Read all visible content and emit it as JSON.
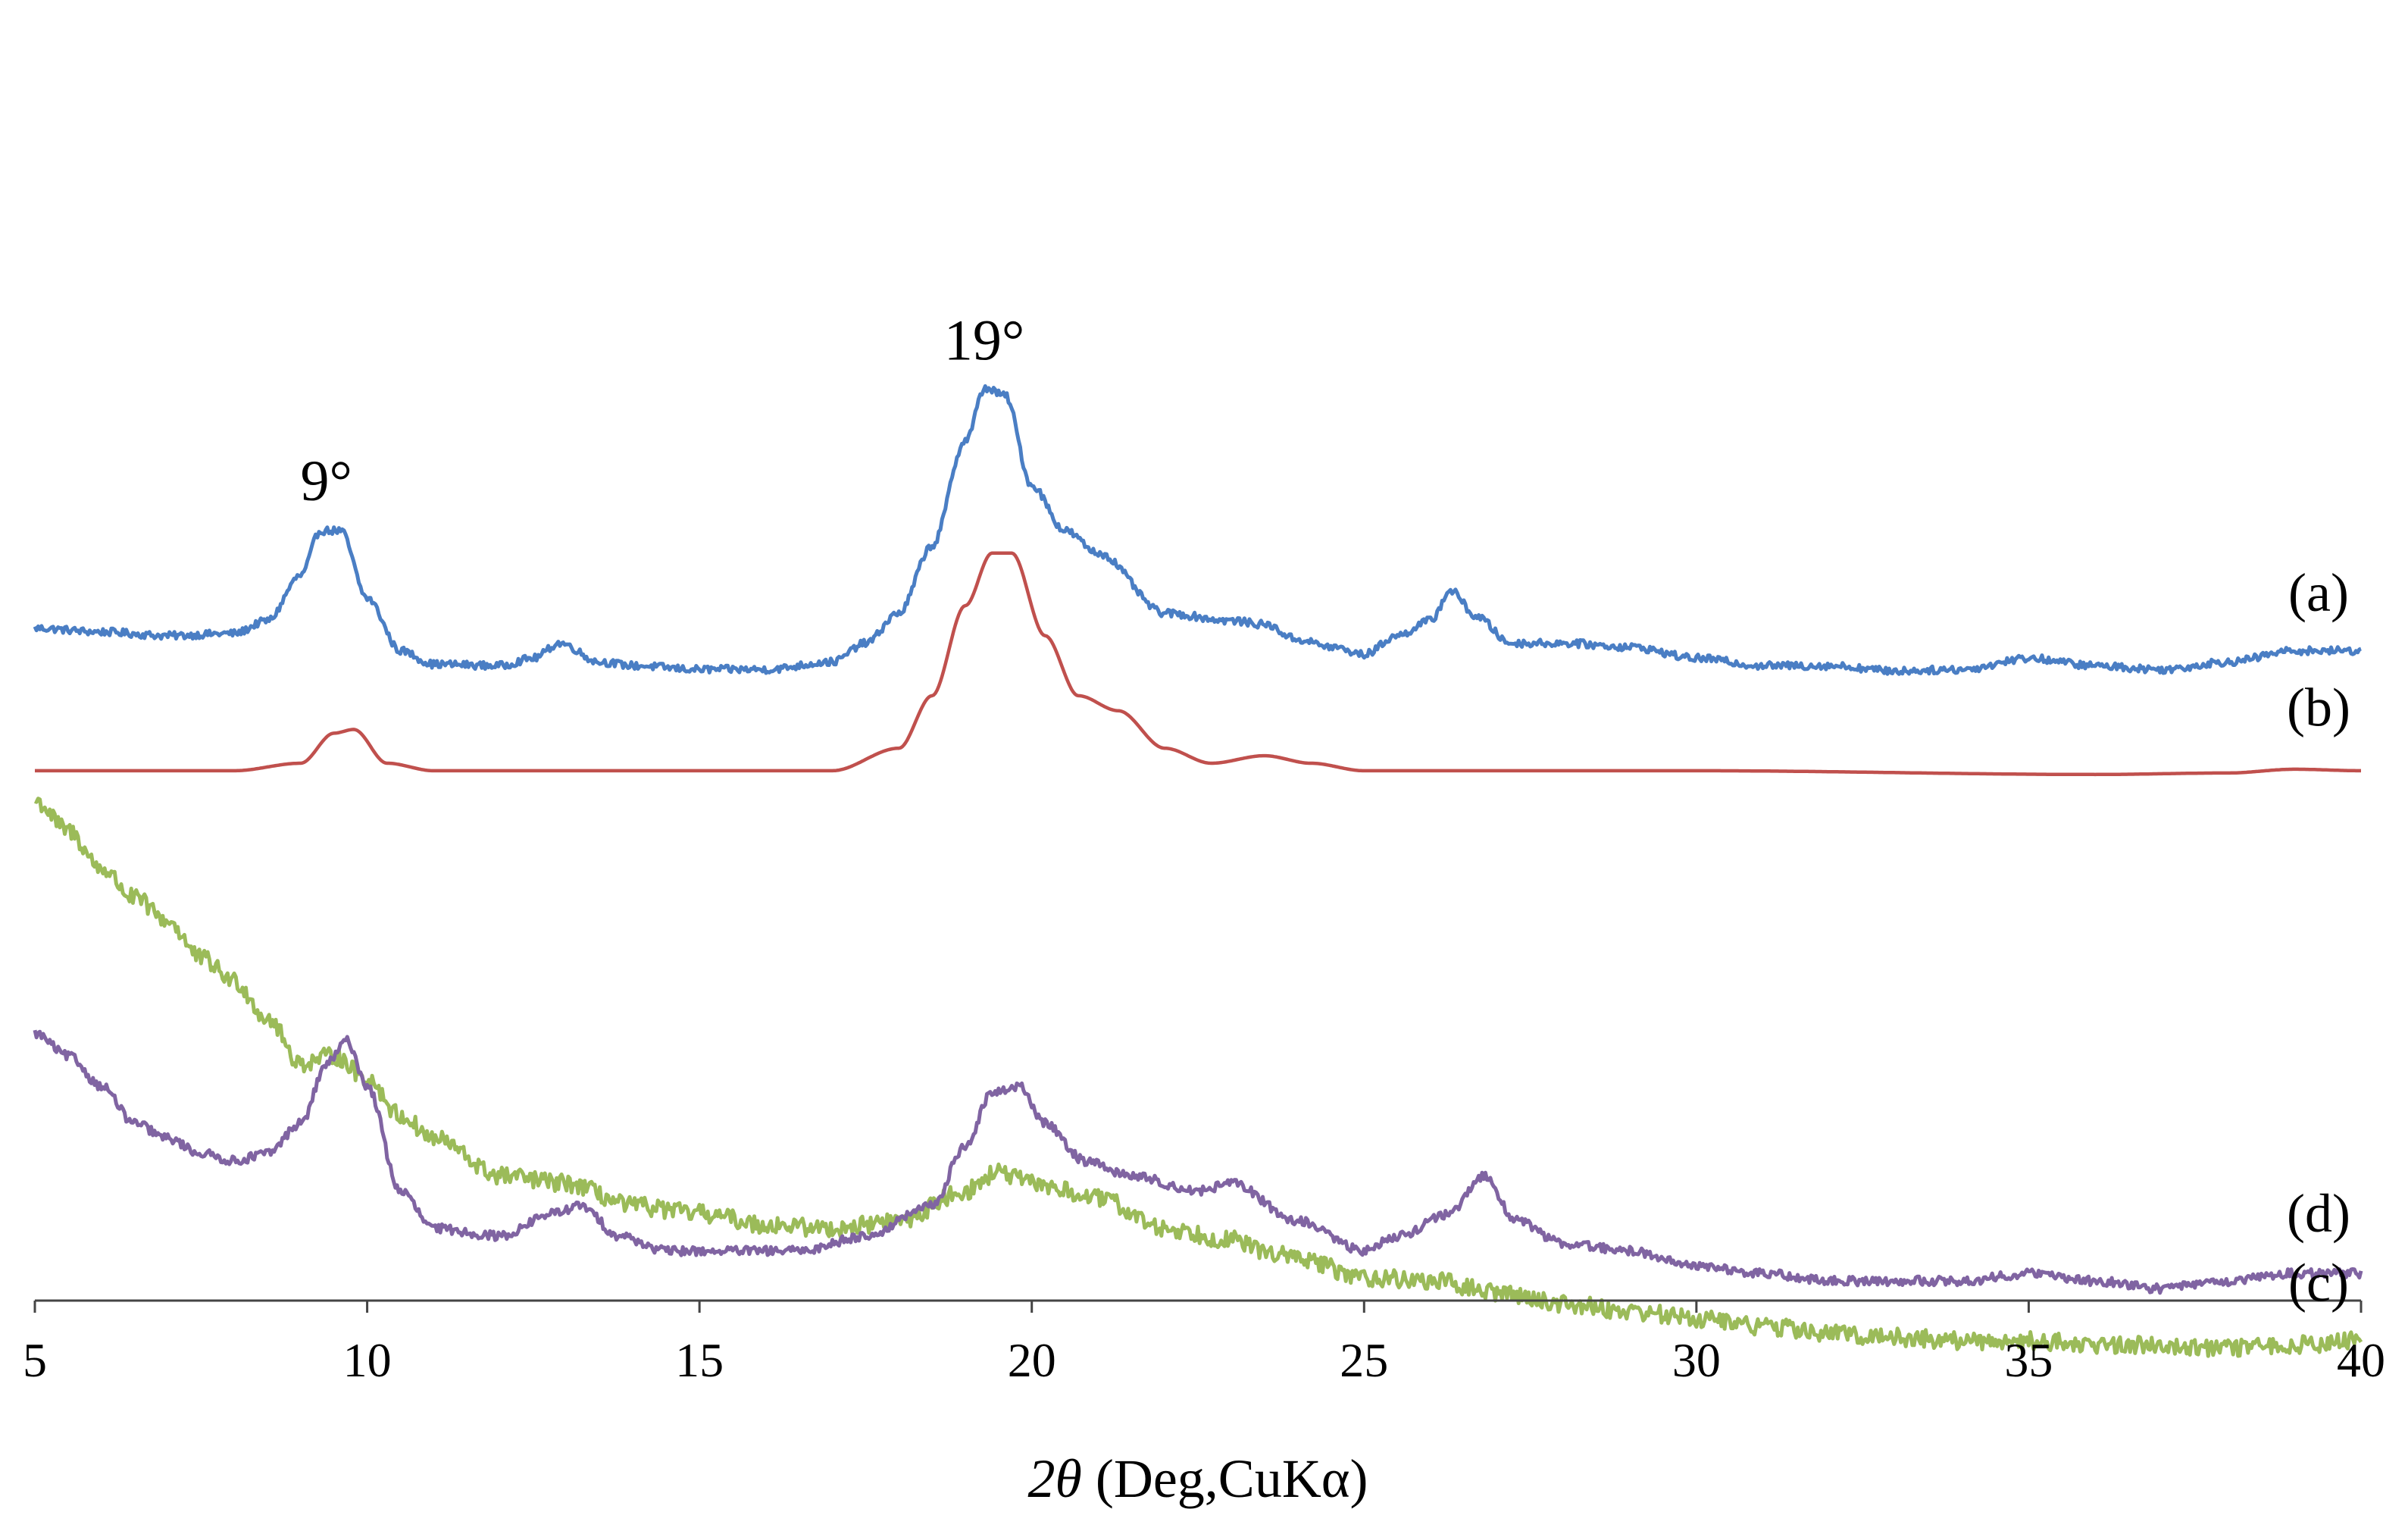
{
  "chart_data": {
    "type": "line",
    "title": "",
    "xlabel_var": "2θ",
    "xlabel_rest": " (Deg,CuKα)",
    "ylabel": "",
    "xlim": [
      5,
      40
    ],
    "xticks": [
      5,
      10,
      15,
      20,
      25,
      30,
      35,
      40
    ],
    "xtick_labels": [
      "5",
      "10",
      "15",
      "20",
      "25",
      "30",
      "35",
      "40"
    ],
    "grid": false,
    "legend": "none",
    "annotations": [
      {
        "text": "9°",
        "x": 9.5
      },
      {
        "text": "19°",
        "x": 19.4
      }
    ],
    "series": [
      {
        "name": "(a)",
        "color": "#4a7ec4",
        "offset": 83,
        "scale": 1.0,
        "noise": 0.5,
        "points": [
          [
            5,
            5
          ],
          [
            6,
            4.5
          ],
          [
            7,
            4
          ],
          [
            8,
            4.3
          ],
          [
            8.5,
            6
          ],
          [
            9,
            12
          ],
          [
            9.3,
            18
          ],
          [
            9.6,
            18
          ],
          [
            10,
            9
          ],
          [
            10.5,
            2
          ],
          [
            11,
            0.2
          ],
          [
            12,
            0
          ],
          [
            12.5,
            1
          ],
          [
            12.9,
            3
          ],
          [
            13.5,
            0.5
          ],
          [
            14,
            0
          ],
          [
            15,
            -0.5
          ],
          [
            16,
            -0.5
          ],
          [
            17,
            0.5
          ],
          [
            17.5,
            3
          ],
          [
            18,
            7
          ],
          [
            18.5,
            16
          ],
          [
            19,
            30
          ],
          [
            19.3,
            37
          ],
          [
            19.6,
            36
          ],
          [
            20,
            24
          ],
          [
            20.5,
            18
          ],
          [
            21,
            15
          ],
          [
            22,
            7
          ],
          [
            23,
            6
          ],
          [
            23.5,
            5.5
          ],
          [
            24,
            3.5
          ],
          [
            24.5,
            2.5
          ],
          [
            25,
            1.5
          ],
          [
            25.5,
            4
          ],
          [
            26,
            6
          ],
          [
            26.3,
            10
          ],
          [
            26.7,
            6.5
          ],
          [
            27.2,
            3
          ],
          [
            28,
            3
          ],
          [
            29,
            2.5
          ],
          [
            30,
            1
          ],
          [
            31,
            0
          ],
          [
            32,
            0
          ],
          [
            33,
            -0.7
          ],
          [
            34,
            -0.5
          ],
          [
            35,
            1
          ],
          [
            36,
            0
          ],
          [
            37,
            -0.5
          ],
          [
            38,
            0.5
          ],
          [
            39,
            2
          ],
          [
            40,
            2
          ]
        ]
      },
      {
        "name": "(b)",
        "color": "#c0504d",
        "offset": 69,
        "scale": 1.0,
        "noise": 0,
        "points": [
          [
            5,
            0
          ],
          [
            8,
            0
          ],
          [
            9,
            1
          ],
          [
            9.5,
            5
          ],
          [
            9.8,
            5.5
          ],
          [
            10.3,
            1
          ],
          [
            11,
            0
          ],
          [
            17,
            0
          ],
          [
            18,
            3
          ],
          [
            18.5,
            10
          ],
          [
            19,
            22
          ],
          [
            19.4,
            29
          ],
          [
            19.7,
            29
          ],
          [
            20.2,
            18
          ],
          [
            20.7,
            10
          ],
          [
            21.3,
            8
          ],
          [
            22,
            3
          ],
          [
            22.7,
            1
          ],
          [
            23.5,
            2
          ],
          [
            24.2,
            1
          ],
          [
            25,
            0
          ],
          [
            30,
            0
          ],
          [
            36,
            -0.5
          ],
          [
            38,
            -0.3
          ],
          [
            39,
            0.2
          ],
          [
            40,
            0
          ]
        ]
      },
      {
        "name": "(c)",
        "color": "#9bbb59",
        "offset": 0,
        "scale": 1.0,
        "noise": 1.2,
        "points": [
          [
            5,
            65
          ],
          [
            5.5,
            61
          ],
          [
            6,
            56
          ],
          [
            6.5,
            52
          ],
          [
            7,
            49
          ],
          [
            7.5,
            44
          ],
          [
            8,
            41
          ],
          [
            8.5,
            36
          ],
          [
            9,
            30
          ],
          [
            9.5,
            31
          ],
          [
            10,
            28
          ],
          [
            10.5,
            23
          ],
          [
            11,
            20
          ],
          [
            12,
            15
          ],
          [
            13,
            14
          ],
          [
            14,
            11
          ],
          [
            15,
            10
          ],
          [
            16,
            8.5
          ],
          [
            17,
            8
          ],
          [
            18,
            9
          ],
          [
            19,
            13
          ],
          [
            19.5,
            15.5
          ],
          [
            20,
            14
          ],
          [
            21,
            12
          ],
          [
            22,
            8
          ],
          [
            23,
            6.5
          ],
          [
            23.5,
            5
          ],
          [
            24,
            4
          ],
          [
            25,
            1.5
          ],
          [
            26,
            1
          ],
          [
            27,
            -0.5
          ],
          [
            28,
            -2
          ],
          [
            29,
            -3
          ],
          [
            30,
            -4
          ],
          [
            31,
            -5
          ],
          [
            32,
            -6
          ],
          [
            33,
            -6.5
          ],
          [
            34,
            -7
          ],
          [
            35,
            -7
          ],
          [
            36,
            -7.5
          ],
          [
            37,
            -7.5
          ],
          [
            38,
            -8
          ],
          [
            39,
            -7.5
          ],
          [
            40,
            -7
          ]
        ]
      },
      {
        "name": "(d)",
        "color": "#8064a2",
        "offset": 35,
        "scale": 1.0,
        "noise": 0.6,
        "points": [
          [
            5,
            -1
          ],
          [
            5.5,
            -4
          ],
          [
            6,
            -8
          ],
          [
            6.5,
            -13
          ],
          [
            7,
            -15
          ],
          [
            7.5,
            -17
          ],
          [
            8,
            -18
          ],
          [
            8.5,
            -17
          ],
          [
            9,
            -13
          ],
          [
            9.4,
            -5
          ],
          [
            9.7,
            -2
          ],
          [
            10,
            -8
          ],
          [
            10.5,
            -22
          ],
          [
            11,
            -27
          ],
          [
            12,
            -28
          ],
          [
            12.8,
            -25
          ],
          [
            13.2,
            -24
          ],
          [
            13.8,
            -28
          ],
          [
            14.5,
            -30
          ],
          [
            15.5,
            -30
          ],
          [
            16.5,
            -30
          ],
          [
            17.5,
            -28
          ],
          [
            18.5,
            -24
          ],
          [
            19,
            -16
          ],
          [
            19.4,
            -9
          ],
          [
            19.8,
            -8
          ],
          [
            20.2,
            -13
          ],
          [
            20.8,
            -18
          ],
          [
            21.5,
            -20
          ],
          [
            22.5,
            -22
          ],
          [
            23,
            -21
          ],
          [
            24,
            -26
          ],
          [
            25,
            -30
          ],
          [
            25.5,
            -28
          ],
          [
            26.3,
            -25
          ],
          [
            26.8,
            -20
          ],
          [
            27.3,
            -26
          ],
          [
            28,
            -29
          ],
          [
            29,
            -30
          ],
          [
            30,
            -32
          ],
          [
            31,
            -33
          ],
          [
            32,
            -34
          ],
          [
            33,
            -34
          ],
          [
            34,
            -34
          ],
          [
            35,
            -33
          ],
          [
            36,
            -34
          ],
          [
            37,
            -35
          ],
          [
            38,
            -34
          ],
          [
            39,
            -33
          ],
          [
            40,
            -33
          ]
        ]
      }
    ]
  }
}
